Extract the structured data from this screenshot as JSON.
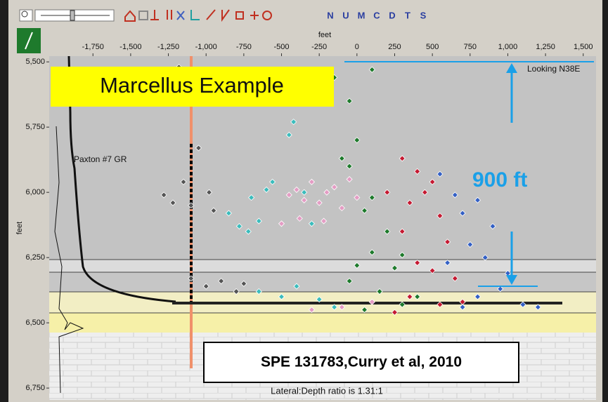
{
  "toolbar": {
    "buttons": [
      "N",
      "U",
      "M",
      "C",
      "D",
      "T",
      "S"
    ]
  },
  "chart_data": {
    "type": "scatter",
    "x_label": "feet",
    "y_label": "feet",
    "annotations": [
      "Marcellus Example",
      "Looking N38E",
      "Paxton #7 GR",
      "900 ft",
      "SPE 131783,Curry et al, 2010",
      "Lateral:Depth ratio is 1.31:1"
    ],
    "xlim": [
      -2040,
      1585
    ],
    "xticks": [
      {
        "value": -1750,
        "label": "-1,750"
      },
      {
        "value": -1500,
        "label": "-1,500"
      },
      {
        "value": -1250,
        "label": "-1,250"
      },
      {
        "value": -1000,
        "label": "-1,000"
      },
      -750,
      -500,
      -250,
      0,
      250,
      500,
      750,
      {
        "value": 1000,
        "label": "1,000"
      },
      {
        "value": 1250,
        "label": "1,250"
      },
      {
        "value": 1500,
        "label": "1,500"
      }
    ],
    "ylim": [
      5478,
      6790
    ],
    "y_inverted": true,
    "yticks": [
      {
        "value": 5500,
        "label": "5,500"
      },
      {
        "value": 5750,
        "label": "5,750"
      },
      {
        "value": 6000,
        "label": "6,000"
      },
      {
        "value": 6250,
        "label": "6,250"
      },
      {
        "value": 6500,
        "label": "6,500"
      },
      {
        "value": 6750,
        "label": "6,750"
      }
    ],
    "series": [
      {
        "color": "#555555",
        "x": [
          -1280,
          -1220,
          -1150,
          -1100,
          -1050,
          -980,
          -950,
          -1100,
          -1000,
          -900,
          -800,
          -750,
          -1200,
          -1180
        ],
        "y": [
          6010,
          6040,
          5960,
          6050,
          5830,
          6000,
          6070,
          6330,
          6360,
          6340,
          6380,
          6350,
          5660,
          5520
        ]
      },
      {
        "color": "#3cbcbc",
        "x": [
          -850,
          -780,
          -720,
          -650,
          -600,
          -450,
          -420,
          -700,
          -350,
          -300,
          -650,
          -500,
          -400,
          -250,
          -150,
          -560
        ],
        "y": [
          6080,
          6130,
          6150,
          6110,
          5990,
          5780,
          5730,
          6020,
          6000,
          6120,
          6380,
          6400,
          6360,
          6410,
          6440,
          5960
        ]
      },
      {
        "color": "#e49cc4",
        "x": [
          -450,
          -400,
          -350,
          -300,
          -250,
          -200,
          -150,
          -100,
          -50,
          -380,
          -220,
          -500,
          0,
          -300,
          -100,
          100
        ],
        "y": [
          6010,
          5990,
          6030,
          5960,
          6040,
          6000,
          5980,
          6060,
          5950,
          6100,
          6110,
          6120,
          6020,
          6450,
          6440,
          6420
        ]
      },
      {
        "color": "#1e7a2c",
        "x": [
          -150,
          -50,
          0,
          -100,
          -50,
          100,
          50,
          200,
          0,
          100,
          300,
          250,
          -50,
          150,
          300,
          50,
          400,
          100
        ],
        "y": [
          5560,
          5650,
          5800,
          5870,
          5900,
          6020,
          6070,
          6150,
          6280,
          6230,
          6240,
          6290,
          6340,
          6380,
          6430,
          6450,
          6400,
          5530
        ]
      },
      {
        "color": "#c41a32",
        "x": [
          300,
          400,
          500,
          200,
          350,
          450,
          550,
          600,
          300,
          400,
          500,
          650,
          350,
          550,
          700,
          250
        ],
        "y": [
          5870,
          5920,
          5960,
          6000,
          6040,
          6000,
          6090,
          6190,
          6150,
          6270,
          6300,
          6330,
          6400,
          6430,
          6420,
          6460
        ]
      },
      {
        "color": "#3460c4",
        "x": [
          550,
          650,
          700,
          800,
          900,
          750,
          600,
          850,
          1000,
          950,
          800,
          1100,
          1200,
          700
        ],
        "y": [
          5930,
          6010,
          6080,
          6030,
          6130,
          6200,
          6270,
          6250,
          6310,
          6370,
          6400,
          6430,
          6440,
          6440
        ]
      }
    ]
  }
}
